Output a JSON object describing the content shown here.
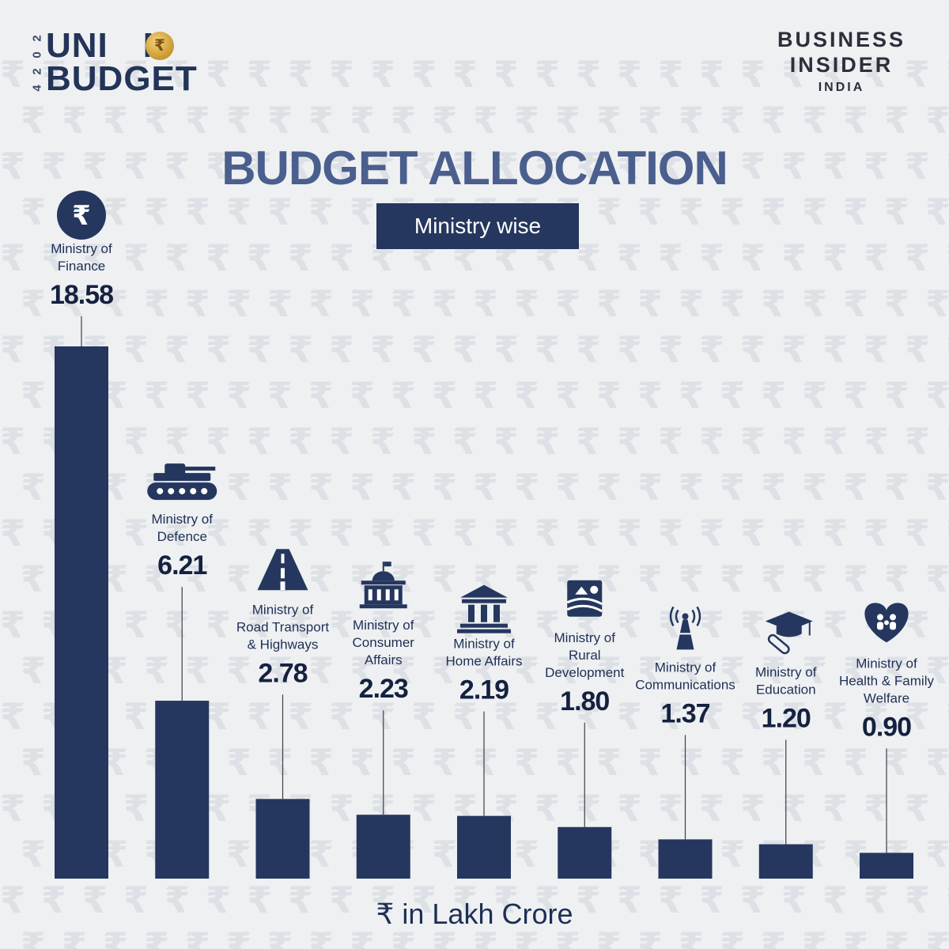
{
  "brand": {
    "year_digits": [
      "2",
      "0",
      "2",
      "4"
    ],
    "union_line1_left": "UNI",
    "union_line1_right": "N",
    "union_line2": "BUDGET",
    "coin_symbol": "₹",
    "publisher_line1": "BUSINESS",
    "publisher_line2": "INSIDER",
    "publisher_line3": "INDIA"
  },
  "colors": {
    "bar": "#25375e",
    "title": "#4a5f8d",
    "accent": "#25375e",
    "gold": "#c9972d"
  },
  "chart_data": {
    "type": "bar",
    "title": "BUDGET ALLOCATION",
    "subtitle": "Ministry wise",
    "unit_label": "₹ in Lakh Crore",
    "categories": [
      [
        "Ministry of",
        "Finance"
      ],
      [
        "Ministry of",
        "Defence"
      ],
      [
        "Ministry of",
        "Road Transport",
        "& Highways"
      ],
      [
        "Ministry of",
        "Consumer",
        "Affairs"
      ],
      [
        "Ministry of",
        "Home Affairs"
      ],
      [
        "Ministry of",
        "Rural",
        "Development"
      ],
      [
        "Ministry of",
        "Communications"
      ],
      [
        "Ministry of",
        "Education"
      ],
      [
        "Ministry of",
        "Health & Family",
        "Welfare"
      ]
    ],
    "values": [
      18.58,
      6.21,
      2.78,
      2.23,
      2.19,
      1.8,
      1.37,
      1.2,
      0.9
    ],
    "value_labels": [
      "18.58",
      "6.21",
      "2.78",
      "2.23",
      "2.19",
      "1.80",
      "1.37",
      "1.20",
      "0.90"
    ],
    "icons": [
      "rupee-icon",
      "tank-icon",
      "road-icon",
      "building-icon",
      "government-building-icon",
      "rural-farm-icon",
      "tower-icon",
      "graduation-cap-icon",
      "health-hands-icon"
    ],
    "ylim": [
      0,
      18.58
    ],
    "grid": false,
    "legend": "none"
  }
}
